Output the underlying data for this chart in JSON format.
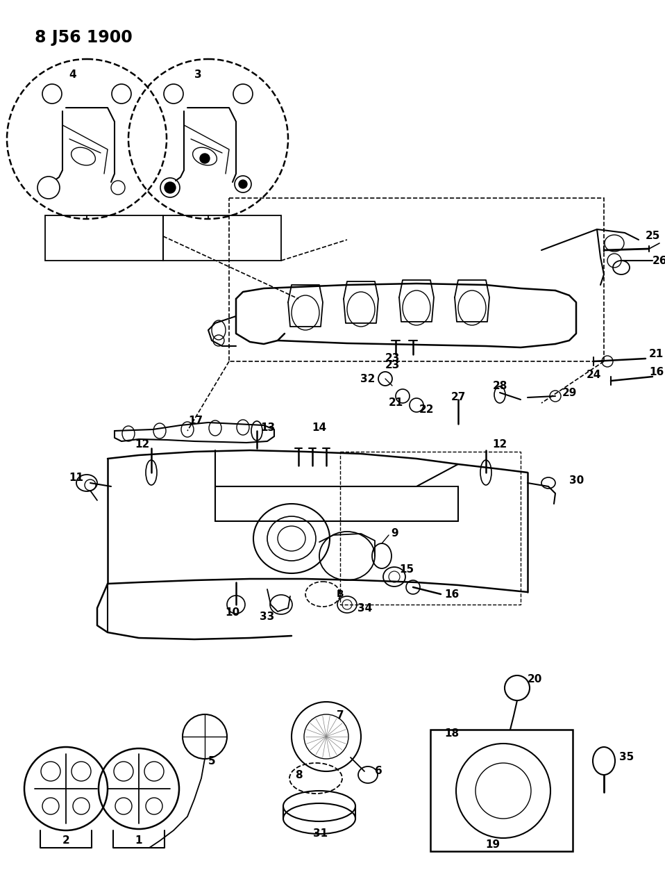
{
  "title": "8 J56 1900",
  "bg_color": "#ffffff",
  "fg_color": "#000000",
  "fig_width": 9.58,
  "fig_height": 12.75,
  "dpi": 100
}
